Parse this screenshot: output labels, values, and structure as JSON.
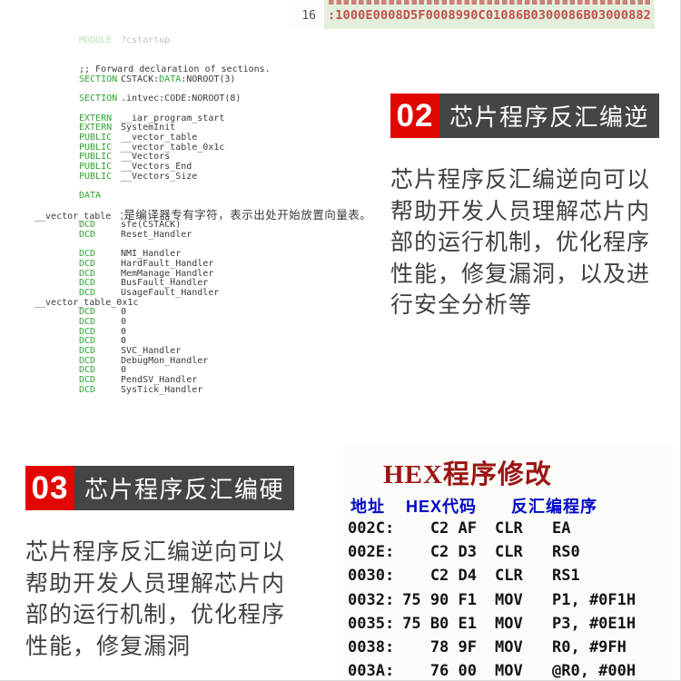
{
  "colors": {
    "hex_bg": "#e3efdb",
    "hex_red": "#c0504d",
    "kw_green": "#33a133",
    "badge_red": "#e10600",
    "badge_dark": "#454545",
    "title_dark_red": "#9b1515",
    "header_blue": "#0008c5"
  },
  "hex_viewer": {
    "line_number": "16",
    "line_text": ":1000E0008D5F0008990C01086B0300086B03000882"
  },
  "asm_listing": {
    "lines": [
      {
        "t": "dir",
        "k": "MODULE",
        "o": "?cstartup",
        "f": true
      },
      {
        "t": "blank"
      },
      {
        "t": "blank"
      },
      {
        "t": "comment",
        "x": ";; Forward declaration of sections."
      },
      {
        "t": "dir",
        "k": "SECTION",
        "segs": [
          {
            "x": "CSTACK:"
          },
          {
            "x": "DATA",
            "g": 1
          },
          {
            "x": ":NOROOT(3)"
          }
        ]
      },
      {
        "t": "blank"
      },
      {
        "t": "dir",
        "k": "SECTION",
        "o": ".intvec:CODE:NOROOT(8)"
      },
      {
        "t": "blank"
      },
      {
        "t": "dir",
        "k": "EXTERN",
        "o": "__iar_program_start"
      },
      {
        "t": "dir",
        "k": "EXTERN",
        "o": "SystemInit"
      },
      {
        "t": "dir",
        "k": "PUBLIC",
        "o": "__vector_table"
      },
      {
        "t": "dir",
        "k": "PUBLIC",
        "o": "__vector_table_0x1c"
      },
      {
        "t": "dir",
        "k": "PUBLIC",
        "o": "__Vectors"
      },
      {
        "t": "dir",
        "k": "PUBLIC",
        "o": "__Vectors_End"
      },
      {
        "t": "dir",
        "k": "PUBLIC",
        "o": "__Vectors_Size"
      },
      {
        "t": "blank"
      },
      {
        "t": "dir",
        "k": "DATA",
        "o": ""
      },
      {
        "t": "blank"
      },
      {
        "t": "label",
        "x": "__vector_table",
        "c": ";是编译器专有字符，表示出处开始放置向量表。"
      },
      {
        "t": "dir",
        "k": "DCD",
        "o": "sfe(CSTACK)"
      },
      {
        "t": "dir",
        "k": "DCD",
        "o": "Reset_Handler"
      },
      {
        "t": "blank"
      },
      {
        "t": "dir",
        "k": "DCD",
        "o": "NMI_Handler"
      },
      {
        "t": "dir",
        "k": "DCD",
        "o": "HardFault_Handler"
      },
      {
        "t": "dir",
        "k": "DCD",
        "o": "MemManage_Handler"
      },
      {
        "t": "dir",
        "k": "DCD",
        "o": "BusFault_Handler"
      },
      {
        "t": "dir",
        "k": "DCD",
        "o": "UsageFault_Handler"
      },
      {
        "t": "label",
        "x": "__vector_table_0x1c"
      },
      {
        "t": "dir",
        "k": "DCD",
        "o": "0"
      },
      {
        "t": "dir",
        "k": "DCD",
        "o": "0"
      },
      {
        "t": "dir",
        "k": "DCD",
        "o": "0"
      },
      {
        "t": "dir",
        "k": "DCD",
        "o": "0"
      },
      {
        "t": "dir",
        "k": "DCD",
        "o": "SVC_Handler"
      },
      {
        "t": "dir",
        "k": "DCD",
        "o": "DebugMon_Handler"
      },
      {
        "t": "dir",
        "k": "DCD",
        "o": "0"
      },
      {
        "t": "dir",
        "k": "DCD",
        "o": "PendSV_Handler"
      },
      {
        "t": "dir",
        "k": "DCD",
        "o": "SysTick_Handler"
      }
    ]
  },
  "section02": {
    "number": "02",
    "title": "芯片程序反汇编逆",
    "body_lines": [
      "芯片程序反汇编逆向可以",
      "帮助开发人员理解芯片内",
      "部的运行机制，优化程序",
      "性能，修复漏洞，以及进",
      "行安全分析等"
    ]
  },
  "section03": {
    "number": "03",
    "title": "芯片程序反汇编硬",
    "body_lines": [
      "芯片程序反汇编逆向可以",
      "帮助开发人员理解芯片内",
      "部的运行机制，优化程序",
      "性能，修复漏洞"
    ]
  },
  "hex_table": {
    "title": "HEX程序修改",
    "headers": [
      "地址",
      "HEX代码",
      "反汇编程序"
    ],
    "rows": [
      {
        "addr": "002C:",
        "hex": "C2 AF",
        "mn": "CLR",
        "op": "EA"
      },
      {
        "addr": "002E:",
        "hex": "C2 D3",
        "mn": "CLR",
        "op": "RS0"
      },
      {
        "addr": "0030:",
        "hex": "C2 D4",
        "mn": "CLR",
        "op": "RS1"
      },
      {
        "addr": "0032:",
        "hex": "75 90 F1",
        "mn": "MOV",
        "op": "P1, #0F1H"
      },
      {
        "addr": "0035:",
        "hex": "75 B0 E1",
        "mn": "MOV",
        "op": "P3, #0E1H"
      },
      {
        "addr": "0038:",
        "hex": "78 9F",
        "mn": "MOV",
        "op": "R0, #9FH"
      },
      {
        "addr": "003A:",
        "hex": "76 00",
        "mn": "MOV",
        "op": "@R0, #00H"
      }
    ]
  }
}
